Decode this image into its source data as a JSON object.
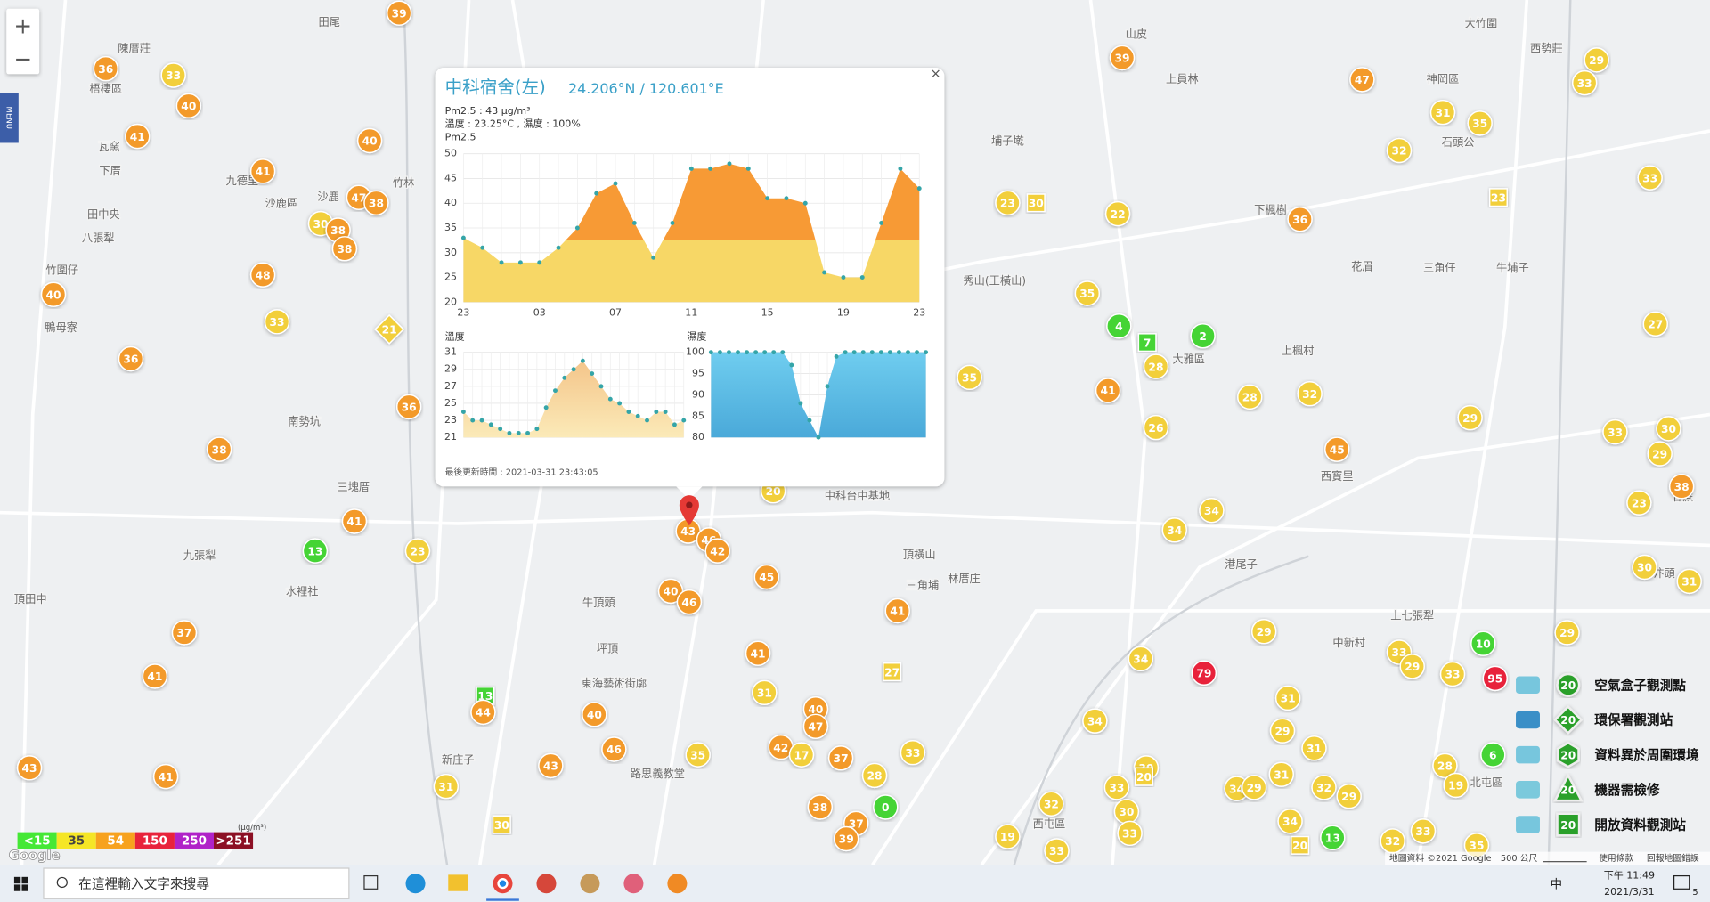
{
  "controls": {
    "zoom_in": "+",
    "zoom_out": "−",
    "menu": "MENU"
  },
  "popup": {
    "title": "中科宿舍(左)",
    "coords": "24.206°N / 120.601°E",
    "close": "×",
    "pm_line": "Pm2.5 : 43 μg/m³",
    "env_line": "溫度 : 23.25°C , 濕度 : 100%",
    "updated": "最後更新時間 : 2021-03-31 23:43:05"
  },
  "chart_data": [
    {
      "type": "area",
      "title": "Pm2.5",
      "categories": [
        "23",
        null,
        null,
        null,
        "03",
        null,
        null,
        null,
        "07",
        null,
        null,
        null,
        "11",
        null,
        null,
        null,
        "15",
        null,
        null,
        null,
        "19",
        null,
        null,
        null,
        "23"
      ],
      "values": [
        33,
        31,
        28,
        28,
        28,
        31,
        35,
        42,
        44,
        36,
        29,
        36,
        47,
        47,
        48,
        47,
        41,
        41,
        40,
        26,
        25,
        25,
        36,
        47,
        43
      ],
      "ylim": [
        20,
        50
      ],
      "yticks": [
        20,
        25,
        30,
        35,
        40,
        45,
        50
      ],
      "colors": [
        "#f79a35",
        "#f7d766"
      ],
      "grid": true
    },
    {
      "type": "area",
      "title": "溫度",
      "values": [
        24,
        23,
        23,
        22.5,
        22,
        21.5,
        21.5,
        21.5,
        22,
        24.5,
        26.5,
        28,
        29,
        30,
        28.5,
        27,
        25.5,
        25,
        24,
        23.5,
        23,
        24,
        24,
        22.5,
        23
      ],
      "ylim": [
        21,
        31
      ],
      "yticks": [
        21,
        23,
        25,
        27,
        29,
        31
      ],
      "colors": [
        "#f4c58a",
        "#fbeab8"
      ],
      "grid": true
    },
    {
      "type": "area",
      "title": "濕度",
      "values": [
        100,
        100,
        100,
        100,
        100,
        100,
        100,
        100,
        100,
        97,
        88,
        84,
        80,
        92,
        99,
        100,
        100,
        100,
        100,
        100,
        100,
        100,
        100,
        100,
        100
      ],
      "ylim": [
        80,
        100
      ],
      "yticks": [
        80,
        85,
        90,
        95,
        100
      ],
      "colors": [
        "#6fcdef",
        "#4aa9d9"
      ],
      "grid": true
    }
  ],
  "markers": [
    {
      "value": 39,
      "color": "#f39a2b",
      "shape": "circle"
    },
    {
      "value": 36,
      "color": "#f39a2b",
      "shape": "circle"
    },
    {
      "value": 33,
      "color": "#f2cf3a",
      "shape": "circle"
    },
    {
      "value": 40,
      "color": "#f39a2b",
      "shape": "circle"
    },
    {
      "value": 41,
      "color": "#f39a2b",
      "shape": "circle"
    },
    {
      "value": 40,
      "color": "#f39a2b",
      "shape": "circle"
    },
    {
      "value": 41,
      "color": "#f39a2b",
      "shape": "circle"
    },
    {
      "value": 47,
      "color": "#f39a2b",
      "shape": "circle"
    },
    {
      "value": 38,
      "color": "#f39a2b",
      "shape": "circle"
    },
    {
      "value": 30,
      "color": "#f2cf3a",
      "shape": "circle"
    },
    {
      "value": 38,
      "color": "#f39a2b",
      "shape": "circle"
    },
    {
      "value": 38,
      "color": "#f39a2b",
      "shape": "circle"
    },
    {
      "value": 48,
      "color": "#f39a2b",
      "shape": "circle"
    },
    {
      "value": 40,
      "color": "#f39a2b",
      "shape": "circle"
    },
    {
      "value": 33,
      "color": "#f2cf3a",
      "shape": "circle"
    },
    {
      "value": 21,
      "color": "#f2cf3a",
      "shape": "diamond"
    },
    {
      "value": 36,
      "color": "#f39a2b",
      "shape": "circle"
    },
    {
      "value": 36,
      "color": "#f39a2b",
      "shape": "circle"
    },
    {
      "value": 38,
      "color": "#f39a2b",
      "shape": "circle"
    },
    {
      "value": 41,
      "color": "#f39a2b",
      "shape": "circle"
    },
    {
      "value": 13,
      "color": "#45d435",
      "shape": "circle"
    },
    {
      "value": 23,
      "color": "#f2cf3a",
      "shape": "circle"
    },
    {
      "value": 37,
      "color": "#f39a2b",
      "shape": "circle"
    },
    {
      "value": 41,
      "color": "#f39a2b",
      "shape": "circle"
    },
    {
      "value": 13,
      "color": "#45d435",
      "shape": "square"
    },
    {
      "value": 44,
      "color": "#f39a2b",
      "shape": "circle"
    },
    {
      "value": 40,
      "color": "#f39a2b",
      "shape": "circle"
    },
    {
      "value": 46,
      "color": "#f39a2b",
      "shape": "circle"
    },
    {
      "value": 43,
      "color": "#f39a2b",
      "shape": "circle"
    },
    {
      "value": 35,
      "color": "#f2cf3a",
      "shape": "circle"
    },
    {
      "value": 31,
      "color": "#f2cf3a",
      "shape": "circle"
    },
    {
      "value": 41,
      "color": "#f39a2b",
      "shape": "circle"
    },
    {
      "value": 43,
      "color": "#f39a2b",
      "shape": "circle"
    },
    {
      "value": 30,
      "color": "#f2cf3a",
      "shape": "square"
    },
    {
      "value": 43,
      "color": "#f39a2b",
      "shape": "circle"
    },
    {
      "value": 46,
      "color": "#f39a2b",
      "shape": "circle"
    },
    {
      "value": 42,
      "color": "#f39a2b",
      "shape": "circle"
    },
    {
      "value": 45,
      "color": "#f39a2b",
      "shape": "circle"
    },
    {
      "value": 40,
      "color": "#f39a2b",
      "shape": "circle"
    },
    {
      "value": 46,
      "color": "#f39a2b",
      "shape": "circle"
    },
    {
      "value": 41,
      "color": "#f39a2b",
      "shape": "circle"
    },
    {
      "value": 31,
      "color": "#f2cf3a",
      "shape": "circle"
    },
    {
      "value": 40,
      "color": "#f39a2b",
      "shape": "circle"
    },
    {
      "value": 47,
      "color": "#f39a2b",
      "shape": "circle"
    },
    {
      "value": 42,
      "color": "#f39a2b",
      "shape": "circle"
    },
    {
      "value": 17,
      "color": "#f2cf3a",
      "shape": "circle"
    },
    {
      "value": 37,
      "color": "#f39a2b",
      "shape": "circle"
    },
    {
      "value": 33,
      "color": "#f2cf3a",
      "shape": "circle"
    },
    {
      "value": 28,
      "color": "#f2cf3a",
      "shape": "circle"
    },
    {
      "value": 0,
      "color": "#45d435",
      "shape": "circle"
    },
    {
      "value": 38,
      "color": "#f39a2b",
      "shape": "circle"
    },
    {
      "value": 37,
      "color": "#f39a2b",
      "shape": "circle"
    },
    {
      "value": 39,
      "color": "#f39a2b",
      "shape": "circle"
    },
    {
      "value": 41,
      "color": "#f39a2b",
      "shape": "circle"
    },
    {
      "value": 27,
      "color": "#f2cf3a",
      "shape": "square"
    },
    {
      "value": 20,
      "color": "#f2cf3a",
      "shape": "circle"
    },
    {
      "value": 39,
      "color": "#f39a2b",
      "shape": "circle"
    },
    {
      "value": 47,
      "color": "#f39a2b",
      "shape": "circle"
    },
    {
      "value": 29,
      "color": "#f2cf3a",
      "shape": "circle"
    },
    {
      "value": 33,
      "color": "#f2cf3a",
      "shape": "circle"
    },
    {
      "value": 31,
      "color": "#f2cf3a",
      "shape": "circle"
    },
    {
      "value": 35,
      "color": "#f2cf3a",
      "shape": "circle"
    },
    {
      "value": 32,
      "color": "#f2cf3a",
      "shape": "circle"
    },
    {
      "value": 33,
      "color": "#f2cf3a",
      "shape": "circle"
    },
    {
      "value": 23,
      "color": "#f2cf3a",
      "shape": "square"
    },
    {
      "value": 23,
      "color": "#f2cf3a",
      "shape": "circle"
    },
    {
      "value": 30,
      "color": "#f2cf3a",
      "shape": "square"
    },
    {
      "value": 22,
      "color": "#f2cf3a",
      "shape": "circle"
    },
    {
      "value": 36,
      "color": "#f39a2b",
      "shape": "circle"
    },
    {
      "value": 35,
      "color": "#f2cf3a",
      "shape": "circle"
    },
    {
      "value": 4,
      "color": "#45d435",
      "shape": "circle"
    },
    {
      "value": 7,
      "color": "#45d435",
      "shape": "square"
    },
    {
      "value": 2,
      "color": "#45d435",
      "shape": "circle"
    },
    {
      "value": 28,
      "color": "#f2cf3a",
      "shape": "circle"
    },
    {
      "value": 35,
      "color": "#f2cf3a",
      "shape": "circle"
    },
    {
      "value": 41,
      "color": "#f39a2b",
      "shape": "circle"
    },
    {
      "value": 28,
      "color": "#f2cf3a",
      "shape": "circle"
    },
    {
      "value": 32,
      "color": "#f2cf3a",
      "shape": "circle"
    },
    {
      "value": 26,
      "color": "#f2cf3a",
      "shape": "circle"
    },
    {
      "value": 29,
      "color": "#f2cf3a",
      "shape": "circle"
    },
    {
      "value": 45,
      "color": "#f39a2b",
      "shape": "circle"
    },
    {
      "value": 33,
      "color": "#f2cf3a",
      "shape": "circle"
    },
    {
      "value": 30,
      "color": "#f2cf3a",
      "shape": "circle"
    },
    {
      "value": 29,
      "color": "#f2cf3a",
      "shape": "circle"
    },
    {
      "value": 38,
      "color": "#f39a2b",
      "shape": "circle"
    },
    {
      "value": 23,
      "color": "#f2cf3a",
      "shape": "circle"
    },
    {
      "value": 34,
      "color": "#f2cf3a",
      "shape": "circle"
    },
    {
      "value": 34,
      "color": "#f2cf3a",
      "shape": "circle"
    },
    {
      "value": 30,
      "color": "#f2cf3a",
      "shape": "circle"
    },
    {
      "value": 31,
      "color": "#f2cf3a",
      "shape": "circle"
    },
    {
      "value": 27,
      "color": "#f2cf3a",
      "shape": "circle"
    },
    {
      "value": 79,
      "color": "#e8233b",
      "shape": "circle"
    },
    {
      "value": 34,
      "color": "#f2cf3a",
      "shape": "circle"
    },
    {
      "value": 29,
      "color": "#f2cf3a",
      "shape": "circle"
    },
    {
      "value": 95,
      "color": "#e8233b",
      "shape": "circle"
    },
    {
      "value": 10,
      "color": "#45d435",
      "shape": "circle"
    },
    {
      "value": 29,
      "color": "#f2cf3a",
      "shape": "circle"
    },
    {
      "value": 33,
      "color": "#f2cf3a",
      "shape": "circle"
    },
    {
      "value": 29,
      "color": "#f2cf3a",
      "shape": "circle"
    },
    {
      "value": 33,
      "color": "#f2cf3a",
      "shape": "circle"
    },
    {
      "value": 31,
      "color": "#f2cf3a",
      "shape": "circle"
    },
    {
      "value": 29,
      "color": "#f2cf3a",
      "shape": "circle"
    },
    {
      "value": 31,
      "color": "#f2cf3a",
      "shape": "circle"
    },
    {
      "value": 34,
      "color": "#f2cf3a",
      "shape": "circle"
    },
    {
      "value": 6,
      "color": "#45d435",
      "shape": "circle"
    },
    {
      "value": 28,
      "color": "#f2cf3a",
      "shape": "circle"
    },
    {
      "value": 19,
      "color": "#f2cf3a",
      "shape": "circle"
    },
    {
      "value": 31,
      "color": "#f2cf3a",
      "shape": "circle"
    },
    {
      "value": 32,
      "color": "#f2cf3a",
      "shape": "circle"
    },
    {
      "value": 29,
      "color": "#f2cf3a",
      "shape": "circle"
    },
    {
      "value": 34,
      "color": "#f2cf3a",
      "shape": "circle"
    },
    {
      "value": 29,
      "color": "#f2cf3a",
      "shape": "circle"
    },
    {
      "value": 30,
      "color": "#f2cf3a",
      "shape": "circle"
    },
    {
      "value": 20,
      "color": "#f2cf3a",
      "shape": "square"
    },
    {
      "value": 33,
      "color": "#f2cf3a",
      "shape": "circle"
    },
    {
      "value": 30,
      "color": "#f2cf3a",
      "shape": "circle"
    },
    {
      "value": 33,
      "color": "#f2cf3a",
      "shape": "circle"
    },
    {
      "value": 32,
      "color": "#f2cf3a",
      "shape": "circle"
    },
    {
      "value": 19,
      "color": "#f2cf3a",
      "shape": "circle"
    },
    {
      "value": 33,
      "color": "#f2cf3a",
      "shape": "circle"
    },
    {
      "value": 34,
      "color": "#f2cf3a",
      "shape": "circle"
    },
    {
      "value": 13,
      "color": "#45d435",
      "shape": "circle"
    },
    {
      "value": 20,
      "color": "#f2cf3a",
      "shape": "square"
    },
    {
      "value": 32,
      "color": "#f2cf3a",
      "shape": "circle"
    },
    {
      "value": 33,
      "color": "#f2cf3a",
      "shape": "circle"
    },
    {
      "value": 35,
      "color": "#f2cf3a",
      "shape": "circle"
    }
  ],
  "map_labels": [
    "田尾",
    "陳厝莊",
    "梧棲區",
    "瓦窯",
    "下厝",
    "九德里",
    "沙鹿",
    "沙鹿區",
    "竹林",
    "田中央",
    "八張犁",
    "竹圍仔",
    "鴨母寮",
    "南勢坑",
    "三塊厝",
    "九張犁",
    "頂田中",
    "水裡社",
    "牛頂頭",
    "坪頂",
    "東海藝術街廓",
    "新庄子",
    "路思義教堂",
    "中科台中基地",
    "頂橫山",
    "林厝庄",
    "三角埔",
    "西屯區",
    "大雅區",
    "上楓村",
    "西寶里",
    "港尾子",
    "上七張犁",
    "中新村",
    "北屯區",
    "大竹圍",
    "西勢莊",
    "神岡區",
    "石頭公",
    "下楓樹",
    "花眉",
    "三角仔",
    "牛埔子",
    "甘蔗",
    "水汴頭",
    "秀山(王橫山)",
    "埔子墘",
    "山皮",
    "上員林"
  ],
  "scale_legend": {
    "unit": "(μg/m³)",
    "items": [
      {
        "label": "<15",
        "color": "#45e835"
      },
      {
        "label": "35",
        "color": "#f5e626"
      },
      {
        "label": "54",
        "color": "#f7a21e"
      },
      {
        "label": "150",
        "color": "#e8233b"
      },
      {
        "label": "250",
        "color": "#b022c8"
      },
      {
        "label": ">251",
        "color": "#8c1024"
      }
    ]
  },
  "type_legend": [
    {
      "number": "20",
      "label": "空氣盒子觀測點",
      "shape": "circle"
    },
    {
      "number": "20",
      "label": "環保署觀測站",
      "shape": "diamond"
    },
    {
      "number": "20",
      "label": "資料異於周圍環境",
      "shape": "hexagon"
    },
    {
      "number": "20",
      "label": "機器需檢修",
      "shape": "triangle"
    },
    {
      "number": "20",
      "label": "開放資料觀測站",
      "shape": "square"
    }
  ],
  "attribution": {
    "logo": "Google",
    "data": "地圖資料 ©2021 Google",
    "scale": "500 公尺",
    "terms": "使用條款",
    "report": "回報地圖錯誤"
  },
  "taskbar": {
    "search": "在這裡輸入文字來搜尋",
    "ime": "中",
    "time": "下午 11:49",
    "date": "2021/3/31",
    "notifications": "5"
  }
}
